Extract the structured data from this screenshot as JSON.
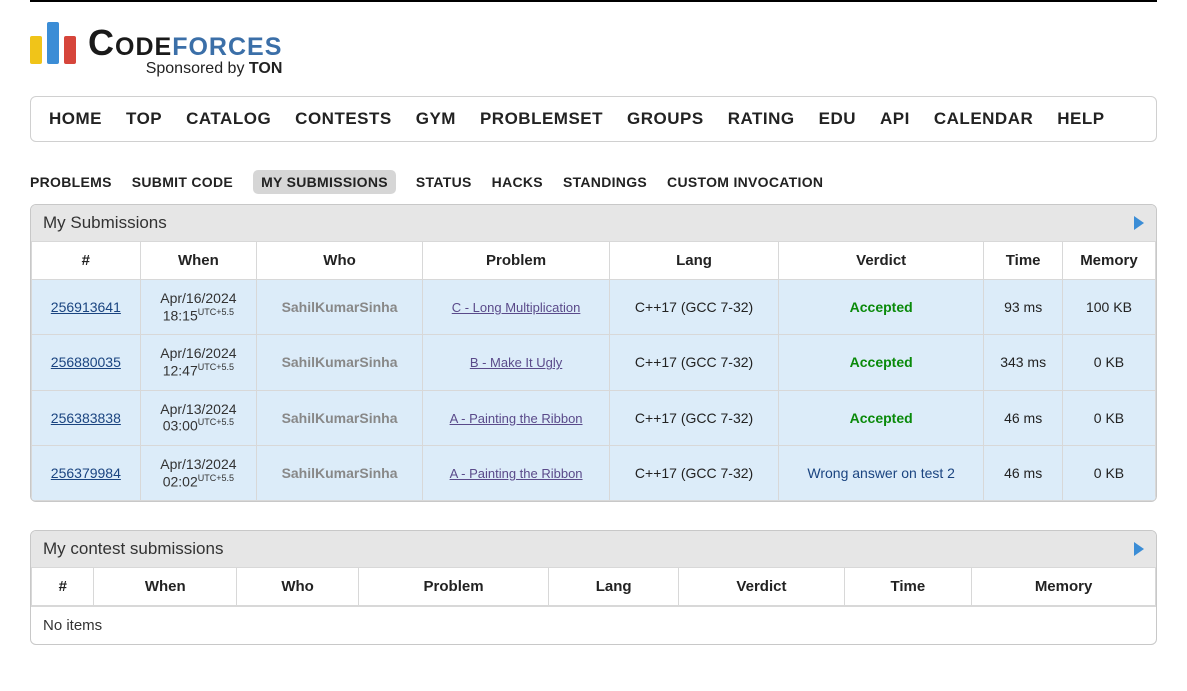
{
  "logo": {
    "code": "Code",
    "forces": "forces",
    "sponsor_prefix": "Sponsored by ",
    "sponsor_name": "TON"
  },
  "main_nav": [
    "HOME",
    "TOP",
    "CATALOG",
    "CONTESTS",
    "GYM",
    "PROBLEMSET",
    "GROUPS",
    "RATING",
    "EDU",
    "API",
    "CALENDAR",
    "HELP"
  ],
  "sub_nav": [
    "PROBLEMS",
    "SUBMIT CODE",
    "MY SUBMISSIONS",
    "STATUS",
    "HACKS",
    "STANDINGS",
    "CUSTOM INVOCATION"
  ],
  "sub_nav_active_index": 2,
  "panel1": {
    "title": "My Submissions",
    "headers": [
      "#",
      "When",
      "Who",
      "Problem",
      "Lang",
      "Verdict",
      "Time",
      "Memory"
    ],
    "rows": [
      {
        "id": "256913641",
        "date": "Apr/16/2024",
        "time": "18:15",
        "tz": "UTC+5.5",
        "who": "SahilKumarSinha",
        "problem": "C - Long Multiplication",
        "lang": "C++17 (GCC 7-32)",
        "verdict": "Accepted",
        "verdict_class": "accepted",
        "t": "93 ms",
        "m": "100 KB"
      },
      {
        "id": "256880035",
        "date": "Apr/16/2024",
        "time": "12:47",
        "tz": "UTC+5.5",
        "who": "SahilKumarSinha",
        "problem": "B - Make It Ugly",
        "lang": "C++17 (GCC 7-32)",
        "verdict": "Accepted",
        "verdict_class": "accepted",
        "t": "343 ms",
        "m": "0 KB"
      },
      {
        "id": "256383838",
        "date": "Apr/13/2024",
        "time": "03:00",
        "tz": "UTC+5.5",
        "who": "SahilKumarSinha",
        "problem": "A - Painting the Ribbon",
        "lang": "C++17 (GCC 7-32)",
        "verdict": "Accepted",
        "verdict_class": "accepted",
        "t": "46 ms",
        "m": "0 KB"
      },
      {
        "id": "256379984",
        "date": "Apr/13/2024",
        "time": "02:02",
        "tz": "UTC+5.5",
        "who": "SahilKumarSinha",
        "problem": "A - Painting the Ribbon",
        "lang": "C++17 (GCC 7-32)",
        "verdict": "Wrong answer on test 2",
        "verdict_class": "wrong",
        "t": "46 ms",
        "m": "0 KB"
      }
    ]
  },
  "panel2": {
    "title": "My contest submissions",
    "headers": [
      "#",
      "When",
      "Who",
      "Problem",
      "Lang",
      "Verdict",
      "Time",
      "Memory"
    ],
    "no_items": "No items"
  }
}
